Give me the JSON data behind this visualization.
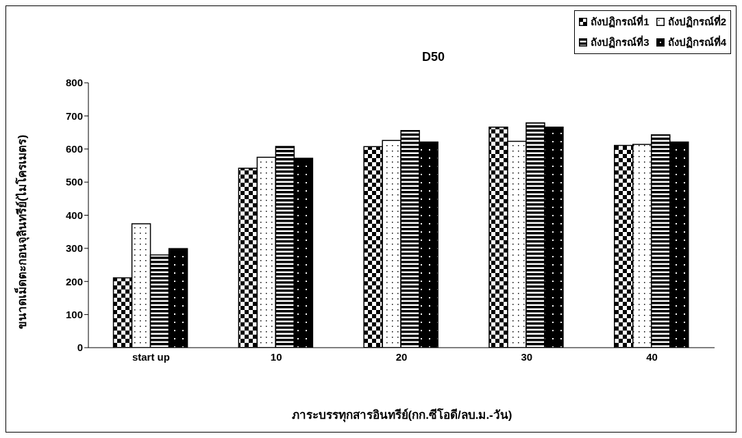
{
  "chart_data": {
    "type": "bar",
    "title": "D50",
    "xlabel": "ภาระบรรทุกสารอินทรีย์(กก.ซีโอดี/ลบ.ม.-วัน)",
    "ylabel": "ขนาดเม็ดตะกอนจุลินทรีย์(ไมโครเมตร)",
    "categories": [
      "start up",
      "10",
      "20",
      "30",
      "40"
    ],
    "series": [
      {
        "name": "ถังปฏิกรณ์ที่1",
        "color": "#000000",
        "values": [
          211,
          542,
          607,
          666,
          611
        ]
      },
      {
        "name": "ถังปฏิกรณ์ที่2",
        "color": "#000000",
        "values": [
          374,
          575,
          626,
          623,
          614
        ]
      },
      {
        "name": "ถังปฏิกรณ์ที่3",
        "color": "#000000",
        "values": [
          280,
          608,
          656,
          679,
          643
        ]
      },
      {
        "name": "ถังปฏิกรณ์ที่4",
        "color": "#000000",
        "values": [
          299,
          572,
          621,
          666,
          621
        ]
      }
    ],
    "ylim": [
      0,
      800
    ],
    "yticks": [
      0,
      100,
      200,
      300,
      400,
      500,
      600,
      700,
      800
    ],
    "legend": "top right"
  }
}
